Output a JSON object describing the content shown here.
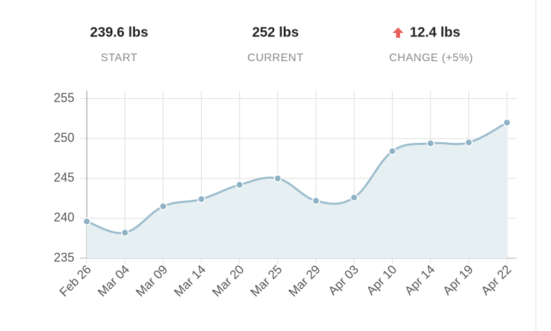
{
  "stats": [
    {
      "value": "239.6 lbs",
      "label": "START"
    },
    {
      "value": "252 lbs",
      "label": "CURRENT"
    },
    {
      "value": "12.4 lbs",
      "label": "CHANGE (+5%)"
    }
  ],
  "chart_data": {
    "type": "line",
    "categories": [
      "Feb 26",
      "Mar 04",
      "Mar 09",
      "Mar 14",
      "Mar 20",
      "Mar 25",
      "Mar 29",
      "Apr 03",
      "Apr 10",
      "Apr 14",
      "Apr 19",
      "Apr 22"
    ],
    "values": [
      239.6,
      238.2,
      241.5,
      242.4,
      244.2,
      245.0,
      242.2,
      242.6,
      248.4,
      249.4,
      249.5,
      252.0
    ],
    "color": "#9bbccc",
    "fill": "#e6eff2",
    "marker_color": "#8eb1c4",
    "ylim": [
      235,
      256
    ],
    "yticks": [
      235,
      240,
      245,
      250,
      255
    ],
    "grid": true
  }
}
